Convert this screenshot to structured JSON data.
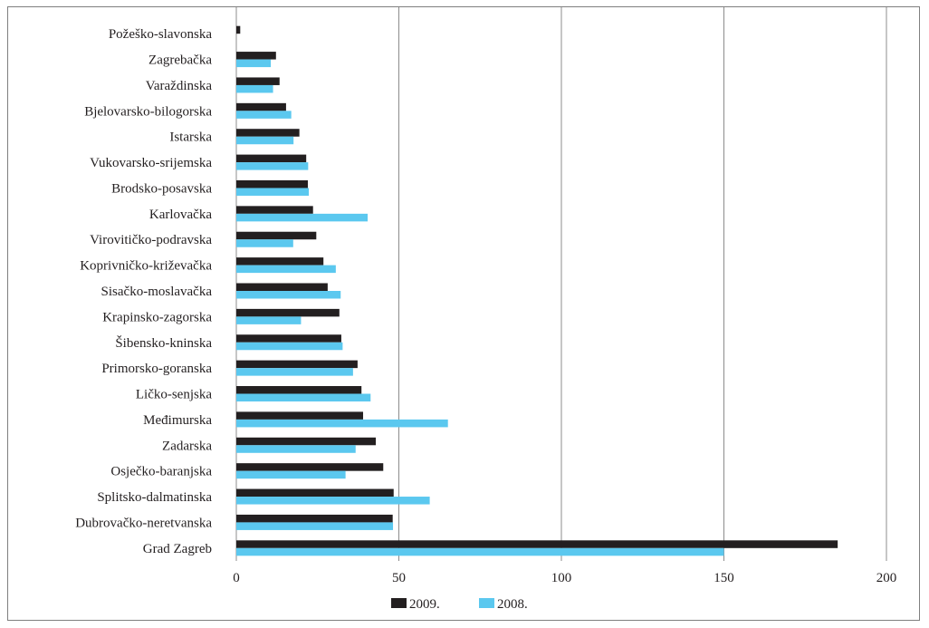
{
  "chart_data": {
    "type": "bar",
    "orientation": "horizontal",
    "title": "",
    "xlabel": "",
    "ylabel": "",
    "categories": [
      "Požeško-slavonska",
      "Zagrebačka",
      "Varaždinska",
      "Bjelovarsko-bilogorska",
      "Istarska",
      "Vukovarsko-srijemska",
      "Brodsko-posavska",
      "Karlovačka",
      "Virovitičko-podravska",
      "Koprivničko-križevačka",
      "Sisačko-moslavačka",
      "Krapinsko-zagorska",
      "Šibensko-kninska",
      "Primorsko-goranska",
      "Ličko-senjska",
      "Međimurska",
      "Zadarska",
      "Osječko-baranjska",
      "Splitsko-dalmatinska",
      "Dubrovačko-neretvanska",
      "Grad Zagreb"
    ],
    "series": [
      {
        "name": "2009.",
        "color": "#231f20",
        "values": [
          1.2,
          12.2,
          13.3,
          15.3,
          19.4,
          21.5,
          22.0,
          23.6,
          24.6,
          26.8,
          28.1,
          31.7,
          32.3,
          37.3,
          38.5,
          39.0,
          42.9,
          45.2,
          48.4,
          48.1,
          185.0
        ]
      },
      {
        "name": "2008.",
        "color": "#5bc8ef",
        "values": [
          0,
          10.6,
          11.3,
          16.9,
          17.6,
          22.1,
          22.3,
          40.4,
          17.5,
          30.6,
          32.1,
          19.9,
          32.7,
          35.9,
          41.3,
          65.1,
          36.7,
          33.6,
          59.5,
          48.2,
          150.0
        ]
      }
    ],
    "xlim": [
      0,
      200
    ],
    "xticks": [
      "0",
      "50",
      "100",
      "150",
      "200"
    ],
    "xtick_values": [
      0,
      50,
      100,
      150,
      200
    ],
    "grid": "vertical",
    "legend": "bottom"
  }
}
